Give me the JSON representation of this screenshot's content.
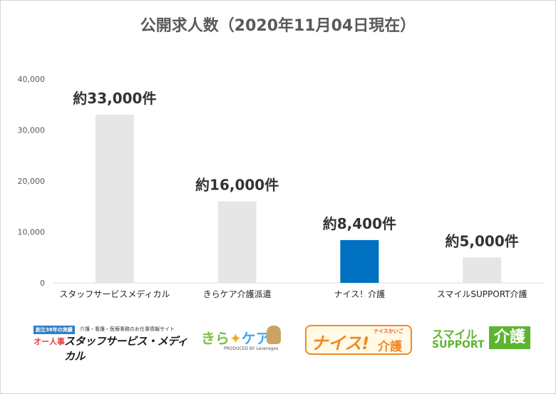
{
  "chart_data": {
    "type": "bar",
    "title": "公開求人数（2020年11月04日現在）",
    "categories": [
      "スタッフサービスメディカル",
      "きらケア介護派遣",
      "ナイス！介護",
      "スマイルSUPPORT介護"
    ],
    "values": [
      33000,
      16000,
      8400,
      5000
    ],
    "data_labels": [
      "約33,000件",
      "約16,000件",
      "約8,400件",
      "約5,000件"
    ],
    "yticks": [
      "0",
      "10,000",
      "20,000",
      "30,000",
      "40,000"
    ],
    "ylim": [
      0,
      40000
    ],
    "grid": false,
    "legend": "none",
    "colors": {
      "default_bar": "#e6e6e6",
      "highlight_bar": "#0070c0",
      "highlight_index": 2
    }
  },
  "logos": {
    "staff": {
      "tag": "創立38年の実績",
      "tagline": "介護・看護・医療事務のお仕事情報サイト",
      "small": "オー人事",
      "big": "スタッフサービス・メディカル"
    },
    "kira": {
      "main_a": "きら",
      "spark": "✦",
      "main_b": "ケア",
      "produced": "PRODUCED BY Leverages"
    },
    "nice": {
      "topline": "ナイスかいご",
      "nice": "ナイス!",
      "kaigo": "介護"
    },
    "smile": {
      "line1": "スマイル",
      "line2": "SUPPORT",
      "kaigo": "介護"
    }
  }
}
